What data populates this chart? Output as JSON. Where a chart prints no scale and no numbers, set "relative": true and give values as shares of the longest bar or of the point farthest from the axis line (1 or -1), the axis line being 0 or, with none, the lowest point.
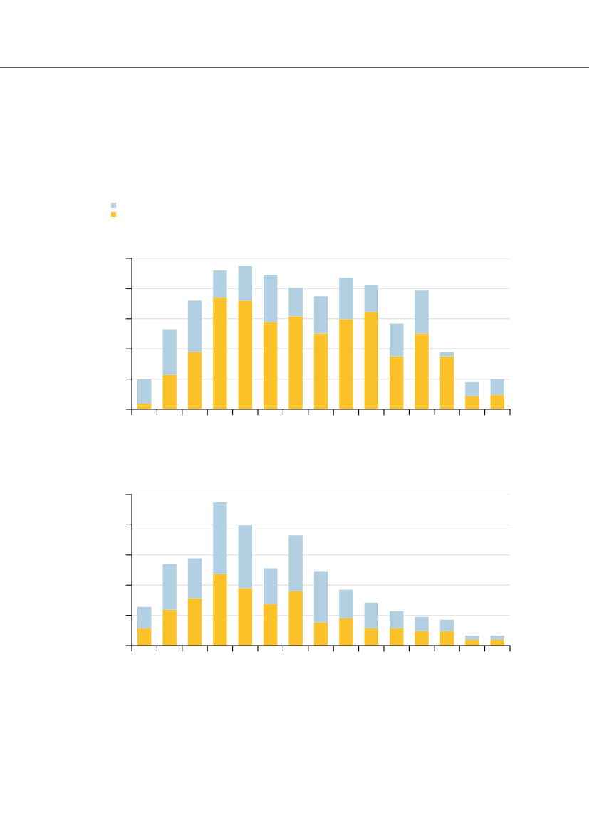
{
  "chart_data": [
    {
      "type": "bar",
      "stacked": true,
      "relative": true,
      "grid": "y",
      "categories": [
        null,
        null,
        null,
        null,
        null,
        null,
        null,
        null,
        null,
        null,
        null,
        null,
        null,
        null,
        null
      ],
      "series": [
        {
          "color": "#fbc22a",
          "values": [
            0.04,
            0.24,
            0.4,
            0.78,
            0.76,
            0.61,
            0.65,
            0.53,
            0.63,
            0.68,
            0.37,
            0.53,
            0.37,
            0.09,
            0.1
          ]
        },
        {
          "color": "#b3d0e2",
          "values": [
            0.17,
            0.32,
            0.36,
            0.19,
            0.24,
            0.33,
            0.2,
            0.26,
            0.29,
            0.19,
            0.23,
            0.3,
            0.03,
            0.1,
            0.11
          ]
        }
      ]
    },
    {
      "type": "bar",
      "stacked": true,
      "relative": true,
      "grid": "y",
      "categories": [
        null,
        null,
        null,
        null,
        null,
        null,
        null,
        null,
        null,
        null,
        null,
        null,
        null,
        null,
        null
      ],
      "series": [
        {
          "color": "#fbc22a",
          "values": [
            0.12,
            0.25,
            0.33,
            0.5,
            0.4,
            0.29,
            0.38,
            0.16,
            0.19,
            0.12,
            0.12,
            0.1,
            0.1,
            0.04,
            0.04
          ]
        },
        {
          "color": "#b3d0e2",
          "values": [
            0.15,
            0.32,
            0.28,
            0.5,
            0.44,
            0.25,
            0.39,
            0.36,
            0.2,
            0.18,
            0.12,
            0.1,
            0.08,
            0.03,
            0.03
          ]
        }
      ]
    }
  ]
}
